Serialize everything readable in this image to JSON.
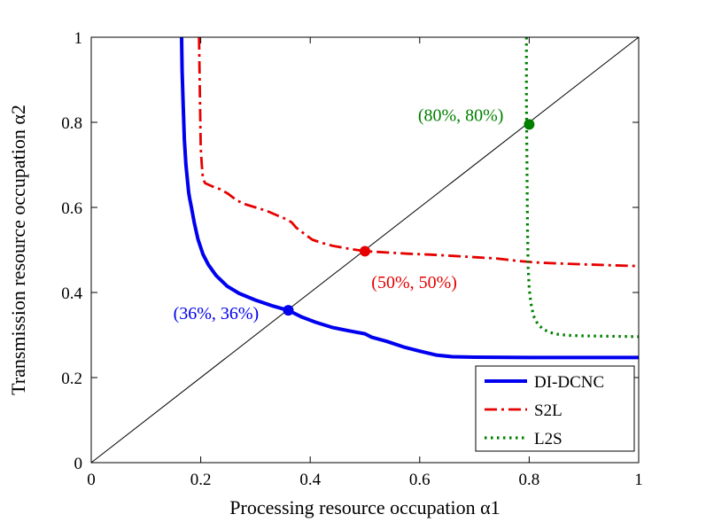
{
  "figure": {
    "background": "#ffffff"
  },
  "chart_data": {
    "type": "line",
    "title": "",
    "xlabel": "Processing resource occupation α1",
    "ylabel": "Transmission resource occupation α2",
    "xlim": [
      0,
      1
    ],
    "ylim": [
      0,
      1
    ],
    "xticks": [
      0,
      0.2,
      0.4,
      0.6,
      0.8,
      1
    ],
    "yticks": [
      0,
      0.2,
      0.4,
      0.6,
      0.8,
      1
    ],
    "grid": false,
    "legend_position": "southeast-inside",
    "series": [
      {
        "name": "DI-DCNC",
        "color": "#0000ee",
        "style": "solid",
        "width": 4,
        "points": [
          [
            0.165,
            1.0
          ],
          [
            0.166,
            0.92
          ],
          [
            0.168,
            0.84
          ],
          [
            0.17,
            0.76
          ],
          [
            0.173,
            0.7
          ],
          [
            0.176,
            0.66
          ],
          [
            0.178,
            0.635
          ],
          [
            0.18,
            0.62
          ],
          [
            0.183,
            0.6
          ],
          [
            0.188,
            0.565
          ],
          [
            0.195,
            0.525
          ],
          [
            0.204,
            0.49
          ],
          [
            0.214,
            0.465
          ],
          [
            0.228,
            0.44
          ],
          [
            0.248,
            0.415
          ],
          [
            0.27,
            0.398
          ],
          [
            0.3,
            0.382
          ],
          [
            0.33,
            0.369
          ],
          [
            0.36,
            0.358
          ],
          [
            0.385,
            0.342
          ],
          [
            0.41,
            0.33
          ],
          [
            0.44,
            0.318
          ],
          [
            0.47,
            0.31
          ],
          [
            0.5,
            0.303
          ],
          [
            0.512,
            0.295
          ],
          [
            0.54,
            0.285
          ],
          [
            0.57,
            0.272
          ],
          [
            0.6,
            0.262
          ],
          [
            0.63,
            0.253
          ],
          [
            0.66,
            0.249
          ],
          [
            0.7,
            0.248
          ],
          [
            0.8,
            0.247
          ],
          [
            0.9,
            0.247
          ],
          [
            1.0,
            0.247
          ]
        ]
      },
      {
        "name": "S2L",
        "color": "#e60000",
        "style": "dashdot",
        "width": 2.8,
        "points": [
          [
            0.197,
            1.0
          ],
          [
            0.198,
            0.9
          ],
          [
            0.199,
            0.82
          ],
          [
            0.2,
            0.74
          ],
          [
            0.202,
            0.7
          ],
          [
            0.204,
            0.668
          ],
          [
            0.208,
            0.657
          ],
          [
            0.22,
            0.65
          ],
          [
            0.235,
            0.643
          ],
          [
            0.25,
            0.632
          ],
          [
            0.265,
            0.617
          ],
          [
            0.28,
            0.608
          ],
          [
            0.3,
            0.6
          ],
          [
            0.32,
            0.592
          ],
          [
            0.34,
            0.581
          ],
          [
            0.355,
            0.573
          ],
          [
            0.366,
            0.565
          ],
          [
            0.374,
            0.553
          ],
          [
            0.39,
            0.537
          ],
          [
            0.404,
            0.524
          ],
          [
            0.42,
            0.517
          ],
          [
            0.44,
            0.51
          ],
          [
            0.47,
            0.503
          ],
          [
            0.5,
            0.497
          ],
          [
            0.54,
            0.494
          ],
          [
            0.58,
            0.491
          ],
          [
            0.62,
            0.489
          ],
          [
            0.66,
            0.486
          ],
          [
            0.7,
            0.483
          ],
          [
            0.74,
            0.48
          ],
          [
            0.78,
            0.474
          ],
          [
            0.82,
            0.47
          ],
          [
            0.86,
            0.468
          ],
          [
            0.9,
            0.466
          ],
          [
            0.95,
            0.464
          ],
          [
            1.0,
            0.462
          ]
        ]
      },
      {
        "name": "L2S",
        "color": "#008000",
        "style": "dotted",
        "width": 3.2,
        "points": [
          [
            0.795,
            1.0
          ],
          [
            0.795,
            0.85
          ],
          [
            0.796,
            0.7
          ],
          [
            0.797,
            0.55
          ],
          [
            0.798,
            0.46
          ],
          [
            0.8,
            0.41
          ],
          [
            0.803,
            0.375
          ],
          [
            0.808,
            0.345
          ],
          [
            0.815,
            0.327
          ],
          [
            0.825,
            0.314
          ],
          [
            0.838,
            0.306
          ],
          [
            0.855,
            0.301
          ],
          [
            0.875,
            0.299
          ],
          [
            0.9,
            0.298
          ],
          [
            0.95,
            0.297
          ],
          [
            1.0,
            0.296
          ]
        ]
      }
    ],
    "reference_line": {
      "from": [
        0,
        0
      ],
      "to": [
        1,
        1
      ],
      "color": "#000000",
      "width": 1
    },
    "markers": [
      {
        "x": 0.36,
        "y": 0.358,
        "color": "#0000ee",
        "label": "(36%, 36%)",
        "label_x": 0.228,
        "label_y": 0.352
      },
      {
        "x": 0.5,
        "y": 0.497,
        "color": "#e60000",
        "label": "(50%, 50%)",
        "label_x": 0.59,
        "label_y": 0.425
      },
      {
        "x": 0.8,
        "y": 0.795,
        "color": "#008000",
        "label": "(80%, 80%)",
        "label_x": 0.675,
        "label_y": 0.818
      }
    ],
    "legend": [
      "DI-DCNC",
      "S2L",
      "L2S"
    ]
  }
}
